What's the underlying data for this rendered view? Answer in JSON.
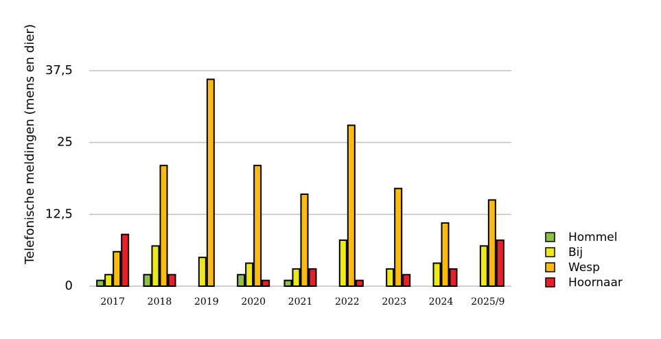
{
  "chart_data": {
    "type": "bar",
    "ylabel": "Telefonische meldingen (mens en dier)",
    "categories": [
      "2017",
      "2018",
      "2019",
      "2020",
      "2021",
      "2022",
      "2023",
      "2024",
      "2025/9"
    ],
    "series": [
      {
        "name": "Hommel",
        "color": "#8cc04b",
        "values": [
          1,
          2,
          0,
          2,
          1,
          0,
          0,
          0,
          0
        ]
      },
      {
        "name": "Bij",
        "color": "#ece81a",
        "values": [
          2,
          7,
          5,
          4,
          3,
          8,
          3,
          4,
          7
        ]
      },
      {
        "name": "Wesp",
        "color": "#fbb913",
        "values": [
          6,
          21,
          36,
          21,
          16,
          28,
          17,
          11,
          15
        ]
      },
      {
        "name": "Hoornaar",
        "color": "#e5202a",
        "values": [
          9,
          2,
          0,
          1,
          3,
          1,
          2,
          3,
          8
        ]
      }
    ],
    "ylim": [
      0,
      37.5
    ],
    "yticks": [
      0,
      {
        "value": 12.5,
        "label": "12,5"
      },
      25,
      {
        "value": 37.5,
        "label": "37,5"
      }
    ],
    "grid": true,
    "legend": "right"
  }
}
